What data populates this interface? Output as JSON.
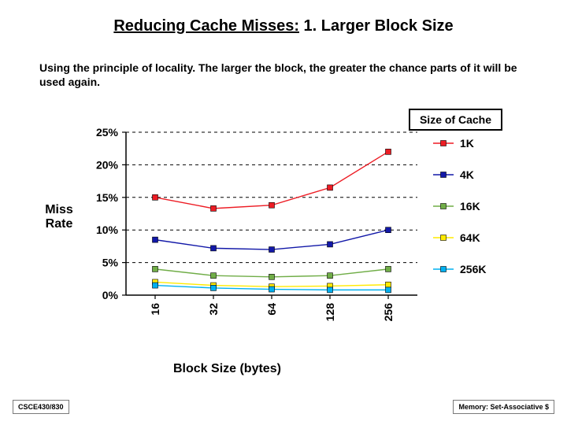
{
  "title_part1": "Reducing Cache Misses:",
  "title_part2": " 1. Larger Block Size",
  "body_text": "Using the principle of locality. The larger the block, the greater the chance parts of it will be used again.",
  "size_of_cache_label": "Size of Cache",
  "ylabel_line1": "Miss",
  "ylabel_line2": "Rate",
  "xlabel": "Block Size (bytes)",
  "footer_left": "CSCE430/830",
  "footer_right": "Memory: Set-Associative $",
  "chart": {
    "type": "line",
    "x_categories": [
      "16",
      "32",
      "64",
      "128",
      "256"
    ],
    "y_ticks": [
      "0%",
      "5%",
      "10%",
      "15%",
      "20%",
      "25%"
    ],
    "ylim": [
      0,
      25
    ],
    "series": [
      {
        "name": "1K",
        "color": "#ed1c24",
        "values": [
          15.0,
          13.3,
          13.8,
          16.5,
          22.0
        ]
      },
      {
        "name": "4K",
        "color": "#1218a8",
        "values": [
          8.5,
          7.2,
          7.0,
          7.8,
          10.0
        ]
      },
      {
        "name": "16K",
        "color": "#70ad47",
        "values": [
          4.0,
          3.0,
          2.8,
          3.0,
          4.0
        ]
      },
      {
        "name": "64K",
        "color": "#ffea00",
        "values": [
          2.0,
          1.5,
          1.3,
          1.4,
          1.6
        ]
      },
      {
        "name": "256K",
        "color": "#00b0f0",
        "values": [
          1.5,
          1.1,
          0.9,
          0.8,
          0.8
        ]
      }
    ],
    "marker_size": 7,
    "line_width": 1.4,
    "axis_color": "#000000",
    "grid_color": "#000000",
    "tick_fontsize": 14,
    "tick_fontweight": "bold",
    "legend_fontsize": 14,
    "legend_fontweight": "bold",
    "background_color": "#ffffff"
  }
}
